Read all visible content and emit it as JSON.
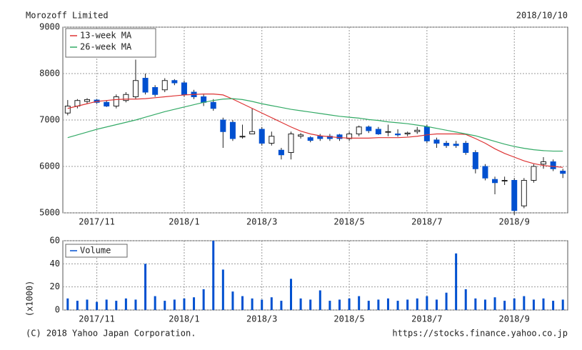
{
  "title": "Morozoff Limited",
  "date": "2018/10/10",
  "copyright": "(C) 2018 Yahoo Japan Corporation.",
  "url": "https://stocks.finance.yahoo.co.jp",
  "chart_data": [
    {
      "type": "candlestick",
      "categories": [
        null,
        null,
        null,
        "2017/11",
        null,
        null,
        null,
        null,
        null,
        null,
        null,
        null,
        "2018/1",
        null,
        null,
        null,
        null,
        null,
        null,
        null,
        "2018/3",
        null,
        null,
        null,
        null,
        null,
        null,
        null,
        null,
        "2018/5",
        null,
        null,
        null,
        null,
        null,
        null,
        null,
        "2018/7",
        null,
        null,
        null,
        null,
        null,
        null,
        null,
        null,
        "2018/9",
        null,
        null,
        null,
        null,
        null
      ],
      "open": [
        7150,
        7300,
        7400,
        7430,
        7380,
        7300,
        7420,
        7500,
        7900,
        7700,
        7650,
        7850,
        7800,
        7600,
        7500,
        7380,
        7000,
        6950,
        6650,
        6700,
        6800,
        6500,
        6350,
        6300,
        6650,
        6620,
        6650,
        6650,
        6680,
        6600,
        6700,
        6850,
        6800,
        6750,
        6700,
        6700,
        6750,
        6850,
        6570,
        6500,
        6480,
        6500,
        6300,
        6000,
        5720,
        5700,
        5700,
        5150,
        5700,
        6050,
        6100,
        5900
      ],
      "close": [
        7300,
        7420,
        7440,
        7380,
        7300,
        7500,
        7550,
        7850,
        7600,
        7550,
        7850,
        7800,
        7550,
        7500,
        7380,
        7250,
        6750,
        6600,
        6650,
        6750,
        6500,
        6650,
        6250,
        6700,
        6680,
        6560,
        6600,
        6600,
        6600,
        6700,
        6850,
        6770,
        6700,
        6750,
        6680,
        6720,
        6780,
        6550,
        6500,
        6450,
        6450,
        6300,
        5950,
        5750,
        5650,
        5700,
        5050,
        5700,
        6000,
        6100,
        5950,
        5850
      ],
      "high": [
        7430,
        7450,
        7470,
        7450,
        7420,
        7550,
        7600,
        8300,
        8000,
        7750,
        7900,
        7880,
        7850,
        7650,
        7550,
        7450,
        7050,
        7000,
        6900,
        7250,
        6850,
        6750,
        6400,
        6750,
        6720,
        6650,
        6700,
        6700,
        6700,
        6750,
        6880,
        6880,
        6850,
        6900,
        6800,
        6750,
        6850,
        6900,
        6620,
        6550,
        6550,
        6550,
        6350,
        6050,
        5780,
        5780,
        5750,
        5750,
        6050,
        6200,
        6150,
        5950
      ],
      "low": [
        7100,
        7250,
        7350,
        7350,
        7280,
        7250,
        7380,
        7450,
        7550,
        7500,
        7600,
        7750,
        7500,
        7450,
        7300,
        7200,
        6400,
        6550,
        6600,
        6700,
        6450,
        6450,
        6150,
        6150,
        6600,
        6520,
        6550,
        6550,
        6550,
        6550,
        6650,
        6720,
        6680,
        6650,
        6640,
        6650,
        6700,
        6500,
        6400,
        6400,
        6400,
        6250,
        5850,
        5700,
        5400,
        5600,
        4950,
        5100,
        5650,
        5950,
        5900,
        5750
      ],
      "up_color": "#ffffff",
      "down_color": "#0050d0",
      "series": [
        {
          "name": "13-week MA",
          "color": "#dd3333",
          "values": [
            7250,
            7300,
            7350,
            7400,
            7420,
            7440,
            7450,
            7450,
            7460,
            7480,
            7500,
            7520,
            7540,
            7550,
            7560,
            7560,
            7540,
            7450,
            7350,
            7250,
            7150,
            7050,
            6950,
            6850,
            6760,
            6700,
            6660,
            6640,
            6620,
            6610,
            6610,
            6610,
            6620,
            6620,
            6620,
            6630,
            6650,
            6680,
            6700,
            6700,
            6700,
            6690,
            6600,
            6500,
            6380,
            6280,
            6200,
            6120,
            6060,
            6020,
            6000,
            5980
          ]
        },
        {
          "name": "26-week MA",
          "color": "#33aa66",
          "values": [
            6620,
            6680,
            6740,
            6800,
            6850,
            6900,
            6950,
            7000,
            7060,
            7120,
            7180,
            7230,
            7280,
            7330,
            7380,
            7420,
            7450,
            7460,
            7440,
            7400,
            7350,
            7310,
            7270,
            7230,
            7200,
            7170,
            7140,
            7110,
            7080,
            7060,
            7040,
            7010,
            6990,
            6960,
            6940,
            6920,
            6890,
            6860,
            6820,
            6780,
            6740,
            6700,
            6660,
            6600,
            6540,
            6480,
            6430,
            6390,
            6360,
            6340,
            6330,
            6330
          ]
        }
      ],
      "ylim": [
        5000,
        9000
      ],
      "yticks": [
        5000,
        6000,
        7000,
        8000,
        9000
      ],
      "grid": true,
      "legend": "upper left"
    },
    {
      "type": "bar",
      "ylabel": "(x1000)",
      "series": [
        {
          "name": "Volume",
          "color": "#0050d0",
          "values": [
            10,
            8,
            9,
            7,
            9,
            8,
            10,
            9,
            40,
            12,
            8,
            9,
            10,
            11,
            18,
            60,
            35,
            16,
            12,
            10,
            9,
            11,
            8,
            27,
            10,
            9,
            17,
            8,
            9,
            10,
            12,
            8,
            9,
            10,
            8,
            9,
            10,
            12,
            9,
            15,
            49,
            18,
            10,
            9,
            11,
            8,
            10,
            12,
            9,
            10,
            8,
            9
          ]
        }
      ],
      "ylim": [
        0,
        60
      ],
      "yticks": [
        0,
        20,
        40,
        60
      ],
      "grid": true,
      "legend": "upper left"
    }
  ]
}
